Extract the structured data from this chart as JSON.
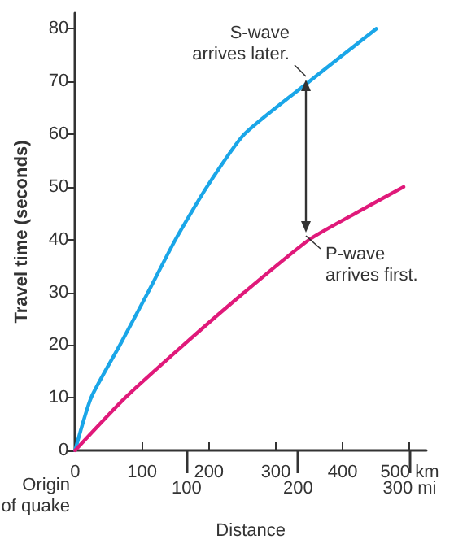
{
  "chart_data": {
    "type": "line",
    "xlabel": "Distance",
    "ylabel": "Travel time (seconds)",
    "xlim": [
      0,
      525
    ],
    "xticks": [
      0,
      100,
      200,
      300,
      400,
      {
        "value": 500,
        "label": "500 km"
      }
    ],
    "x2lim": [
      0,
      315
    ],
    "x2ticks": [
      100,
      200,
      {
        "value": 300,
        "label": "300 mi"
      }
    ],
    "ylim": [
      0,
      83
    ],
    "yticks": [
      0,
      10,
      20,
      30,
      40,
      50,
      60,
      70,
      80
    ],
    "grid": false,
    "marker": "none",
    "line_style": "solid",
    "series": [
      {
        "color": "#1aa6e8",
        "x": [
          0,
          24,
          67,
          109,
          150,
          197,
          253,
          350,
          450
        ],
        "values": [
          0,
          10,
          20,
          30,
          40,
          50,
          60,
          70,
          80
        ]
      },
      {
        "color": "#e0197a",
        "x": [
          0,
          75,
          162,
          253,
          350,
          419,
          491
        ],
        "values": [
          0,
          10,
          20,
          30,
          40,
          45,
          50
        ]
      }
    ],
    "annotations": [
      "S-wave arrives later.",
      "P-wave arrives first.",
      "Origin of quake"
    ]
  }
}
